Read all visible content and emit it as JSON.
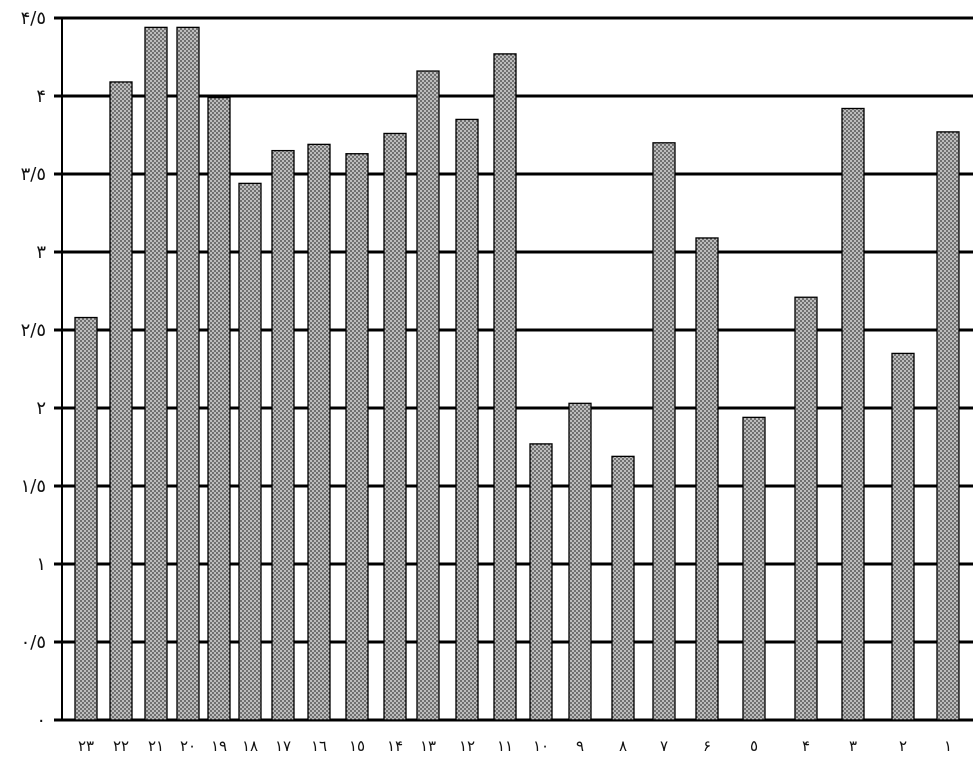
{
  "chart_data": {
    "type": "bar",
    "y_tick_labels": [
      "٠",
      "٠/٥",
      "١",
      "١/٥",
      "٢",
      "٢/٥",
      "٣",
      "٣/٥",
      "۴",
      "۴/٥"
    ],
    "y_ticks": [
      0,
      0.5,
      1,
      1.5,
      2,
      2.5,
      3,
      3.5,
      4,
      4.5
    ],
    "ylim": [
      0,
      4.5
    ],
    "grid": true,
    "bars": [
      {
        "label": "٢٣",
        "value": 2.58
      },
      {
        "label": "٢٢",
        "value": 4.09
      },
      {
        "label": "٢١",
        "value": 4.44
      },
      {
        "label": "٢٠",
        "value": 4.44
      },
      {
        "label": "١٩",
        "value": 3.99
      },
      {
        "label": "١٨",
        "value": 3.44
      },
      {
        "label": "١٧",
        "value": 3.65
      },
      {
        "label": "١٦",
        "value": 3.69
      },
      {
        "label": "١٥",
        "value": 3.63
      },
      {
        "label": "١۴",
        "value": 3.76
      },
      {
        "label": "١٣",
        "value": 4.16
      },
      {
        "label": "١٢",
        "value": 3.85
      },
      {
        "label": "١١",
        "value": 4.27
      },
      {
        "label": "١٠",
        "value": 1.77
      },
      {
        "label": "٩",
        "value": 2.03
      },
      {
        "label": "٨",
        "value": 1.69
      },
      {
        "label": "٧",
        "value": 3.7
      },
      {
        "label": "۶",
        "value": 3.09
      },
      {
        "label": "٥",
        "value": 1.94
      },
      {
        "label": "۴",
        "value": 2.71
      },
      {
        "label": "٣",
        "value": 3.92
      },
      {
        "label": "٢",
        "value": 2.35
      },
      {
        "label": "١",
        "value": 3.77
      }
    ]
  }
}
